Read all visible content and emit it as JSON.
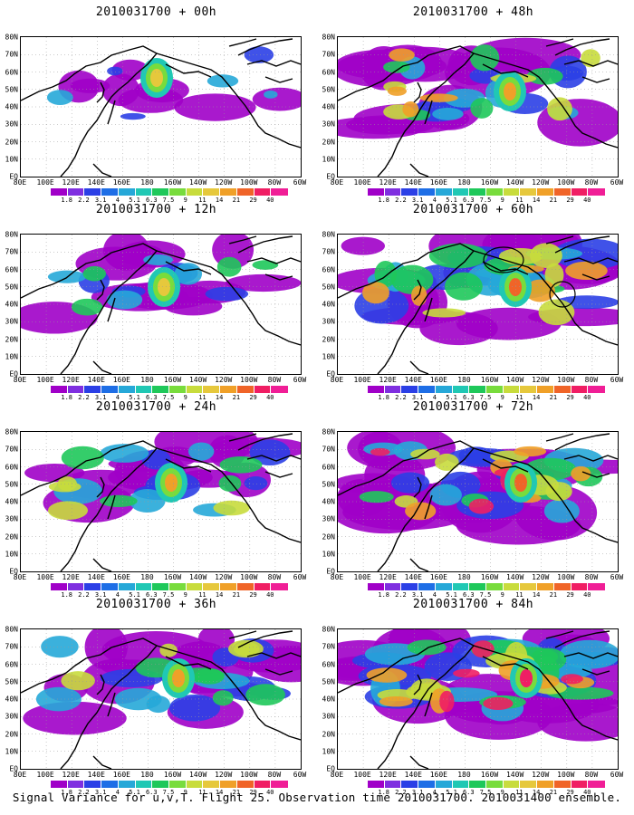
{
  "colorbar": {
    "labels": [
      "1.8",
      "2.2",
      "3.1",
      "4",
      "5.1",
      "6.3",
      "7.5",
      "9",
      "11",
      "14",
      "21",
      "29",
      "40"
    ],
    "colors": [
      "#a000c8",
      "#7f2fe0",
      "#2b3fe6",
      "#1e6ee6",
      "#26a8d8",
      "#20c8b4",
      "#1ec85a",
      "#78dc3c",
      "#c8dc3c",
      "#e6c83c",
      "#f0a028",
      "#f06428",
      "#f01e64"
    ]
  },
  "axes": {
    "y_labels": [
      "80N",
      "70N",
      "60N",
      "50N",
      "40N",
      "30N",
      "20N",
      "10N",
      "EQ"
    ],
    "x_labels": [
      "80E",
      "100E",
      "120E",
      "140E",
      "160E",
      "180",
      "160W",
      "140W",
      "120W",
      "100W",
      "80W",
      "60W"
    ]
  },
  "panels": [
    {
      "title": "2010031700 + 00h",
      "col": 0,
      "row": 0,
      "intensity": 0.15
    },
    {
      "title": "2010031700 + 12h",
      "col": 0,
      "row": 1,
      "intensity": 0.35
    },
    {
      "title": "2010031700 + 24h",
      "col": 0,
      "row": 2,
      "intensity": 0.45
    },
    {
      "title": "2010031700 + 36h",
      "col": 0,
      "row": 3,
      "intensity": 0.5
    },
    {
      "title": "2010031700 + 48h",
      "col": 1,
      "row": 0,
      "intensity": 0.6
    },
    {
      "title": "2010031700 + 60h",
      "col": 1,
      "row": 1,
      "intensity": 0.7
    },
    {
      "title": "2010031700 + 72h",
      "col": 1,
      "row": 2,
      "intensity": 0.8
    },
    {
      "title": "2010031700 + 84h",
      "col": 1,
      "row": 3,
      "intensity": 0.9
    }
  ],
  "caption": "Signal Variance for u,v,T. Flight 25. Observation time 2010031700. 2010031400 ensemble."
}
